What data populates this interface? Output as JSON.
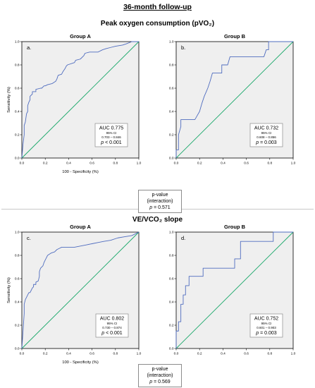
{
  "figure": {
    "title": "36-month follow-up",
    "sections": [
      {
        "title": "Peak oxygen consumption (pVO₂)",
        "pvalue": {
          "line1": "p-value",
          "line2": "(interaction)",
          "p_label": "p",
          "p_value": "= 0.571"
        }
      },
      {
        "title": "VE/VCO₂ slope",
        "pvalue": {
          "line1": "p-value",
          "line2": "(interaction)",
          "p_label": "p",
          "p_value": "= 0.569"
        }
      }
    ]
  },
  "colors": {
    "roc_line": "#4f6cbf",
    "reference_line": "#1aa86a",
    "plot_bg": "#efefef",
    "box_border": "#8c8c8c"
  },
  "chart_data": [
    {
      "type": "line",
      "title": "Group A",
      "panel_label": "a.",
      "xlabel": "100 - Specificity (%)",
      "ylabel": "Sensitivity (%)",
      "xlim": [
        0,
        1
      ],
      "ylim": [
        0,
        1
      ],
      "xticks": [
        "0.0",
        "0.2",
        "0.4",
        "0.6",
        "0.8",
        "1.0"
      ],
      "yticks": [
        "0.0",
        "0.2",
        "0.4",
        "0.6",
        "0.8",
        "1.0"
      ],
      "grid": false,
      "series": [
        {
          "x": [
            0,
            0.01,
            0.02,
            0.02,
            0.03,
            0.04,
            0.05,
            0.05,
            0.06,
            0.07,
            0.07,
            0.09,
            0.09,
            0.12,
            0.12,
            0.16,
            0.17,
            0.19,
            0.2,
            0.22,
            0.26,
            0.29,
            0.3,
            0.31,
            0.34,
            0.35,
            0.37,
            0.38,
            0.39,
            0.45,
            0.46,
            0.5,
            0.53,
            0.54,
            0.58,
            0.65,
            0.69,
            0.72,
            0.76,
            0.8,
            0.86,
            0.89,
            0.94,
            1.0
          ],
          "y": [
            0,
            0.12,
            0.2,
            0.28,
            0.31,
            0.38,
            0.4,
            0.45,
            0.48,
            0.5,
            0.53,
            0.55,
            0.57,
            0.57,
            0.59,
            0.6,
            0.6,
            0.62,
            0.62,
            0.63,
            0.64,
            0.66,
            0.68,
            0.71,
            0.72,
            0.74,
            0.77,
            0.79,
            0.8,
            0.82,
            0.84,
            0.85,
            0.88,
            0.9,
            0.91,
            0.91,
            0.93,
            0.94,
            0.95,
            0.96,
            0.97,
            0.98,
            1.0,
            1.0
          ]
        },
        {
          "x": [
            0,
            1
          ],
          "y": [
            0,
            1
          ]
        }
      ],
      "annotation": {
        "auc": "AUC 0.775",
        "ci_label": "95% CI",
        "ci": "0.703 – 0.846",
        "p_label": "p",
        "p_value": "< 0.001"
      }
    },
    {
      "type": "line",
      "title": "Group B",
      "panel_label": "b.",
      "xlabel": "",
      "ylabel": "",
      "xlim": [
        0,
        1
      ],
      "ylim": [
        0,
        1
      ],
      "xticks": [
        "0.0",
        "0.2",
        "0.4",
        "0.6",
        "0.8",
        "1.0"
      ],
      "yticks": [
        "0.0",
        "0.2",
        "0.4",
        "0.6",
        "0.8",
        "1.0"
      ],
      "grid": false,
      "series": [
        {
          "x": [
            0,
            0,
            0.02,
            0.02,
            0.04,
            0.04,
            0.07,
            0.14,
            0.16,
            0.2,
            0.22,
            0.24,
            0.27,
            0.29,
            0.31,
            0.33,
            0.36,
            0.39,
            0.39,
            0.44,
            0.46,
            0.5,
            0.75,
            0.77,
            0.79,
            0.79,
            0.98,
            1.0
          ],
          "y": [
            0,
            0.07,
            0.07,
            0.2,
            0.27,
            0.33,
            0.33,
            0.33,
            0.33,
            0.4,
            0.47,
            0.53,
            0.6,
            0.66,
            0.73,
            0.73,
            0.73,
            0.73,
            0.8,
            0.8,
            0.87,
            0.87,
            0.87,
            0.93,
            0.93,
            1.0,
            1.0,
            1.0
          ]
        },
        {
          "x": [
            0,
            1
          ],
          "y": [
            0,
            1
          ]
        }
      ],
      "annotation": {
        "auc": "AUC 0.732",
        "ci_label": "95% CI",
        "ci": "0.608 – 0.856",
        "p_label": "p",
        "p_value": "= 0.003"
      }
    },
    {
      "type": "line",
      "title": "Group A",
      "panel_label": "c.",
      "xlabel": "100 - Specificity (%)",
      "ylabel": "Sensitivity (%)",
      "xlim": [
        0,
        1
      ],
      "ylim": [
        0,
        1
      ],
      "xticks": [
        "0.0",
        "0.2",
        "0.4",
        "0.6",
        "0.8",
        "1.0"
      ],
      "yticks": [
        "0.0",
        "0.2",
        "0.4",
        "0.6",
        "0.8",
        "1.0"
      ],
      "grid": false,
      "series": [
        {
          "x": [
            0,
            0.01,
            0.02,
            0.02,
            0.03,
            0.04,
            0.05,
            0.06,
            0.07,
            0.08,
            0.09,
            0.1,
            0.1,
            0.12,
            0.12,
            0.14,
            0.15,
            0.15,
            0.16,
            0.18,
            0.19,
            0.2,
            0.21,
            0.22,
            0.25,
            0.28,
            0.3,
            0.32,
            0.34,
            0.38,
            0.45,
            0.5,
            0.55,
            0.6,
            0.65,
            0.7,
            0.76,
            0.82,
            0.88,
            0.94,
            1.0
          ],
          "y": [
            0,
            0.15,
            0.3,
            0.38,
            0.42,
            0.44,
            0.46,
            0.48,
            0.48,
            0.5,
            0.52,
            0.53,
            0.55,
            0.55,
            0.57,
            0.58,
            0.62,
            0.66,
            0.69,
            0.71,
            0.74,
            0.76,
            0.78,
            0.8,
            0.82,
            0.83,
            0.85,
            0.86,
            0.87,
            0.87,
            0.87,
            0.88,
            0.89,
            0.9,
            0.91,
            0.92,
            0.93,
            0.95,
            0.96,
            0.97,
            1.0
          ]
        },
        {
          "x": [
            0,
            1
          ],
          "y": [
            0,
            1
          ]
        }
      ],
      "annotation": {
        "auc": "AUC 0.802",
        "ci_label": "95% CI",
        "ci": "0.730 – 0.874",
        "p_label": "p",
        "p_value": "< 0.001"
      }
    },
    {
      "type": "line",
      "title": "Group B",
      "panel_label": "d.",
      "xlabel": "",
      "ylabel": "",
      "xlim": [
        0,
        1
      ],
      "ylim": [
        0,
        1
      ],
      "xticks": [
        "0.0",
        "0.2",
        "0.4",
        "0.6",
        "0.8",
        "1.0"
      ],
      "yticks": [
        "0.0",
        "0.2",
        "0.4",
        "0.6",
        "0.8",
        "1.0"
      ],
      "grid": false,
      "series": [
        {
          "x": [
            0,
            0,
            0.02,
            0.02,
            0.04,
            0.04,
            0.06,
            0.06,
            0.08,
            0.08,
            0.11,
            0.11,
            0.2,
            0.23,
            0.23,
            0.31,
            0.31,
            0.5,
            0.5,
            0.55,
            0.55,
            0.83,
            0.83,
            1.0
          ],
          "y": [
            0,
            0.15,
            0.15,
            0.23,
            0.23,
            0.38,
            0.38,
            0.46,
            0.46,
            0.54,
            0.54,
            0.62,
            0.62,
            0.62,
            0.69,
            0.69,
            0.69,
            0.69,
            0.77,
            0.77,
            0.92,
            0.92,
            1.0,
            1.0
          ]
        },
        {
          "x": [
            0,
            1
          ],
          "y": [
            0,
            1
          ]
        }
      ],
      "annotation": {
        "auc": "AUC 0.752",
        "ci_label": "95% CI",
        "ci": "0.601 – 0.903",
        "p_label": "p",
        "p_value": "= 0.003"
      }
    }
  ]
}
